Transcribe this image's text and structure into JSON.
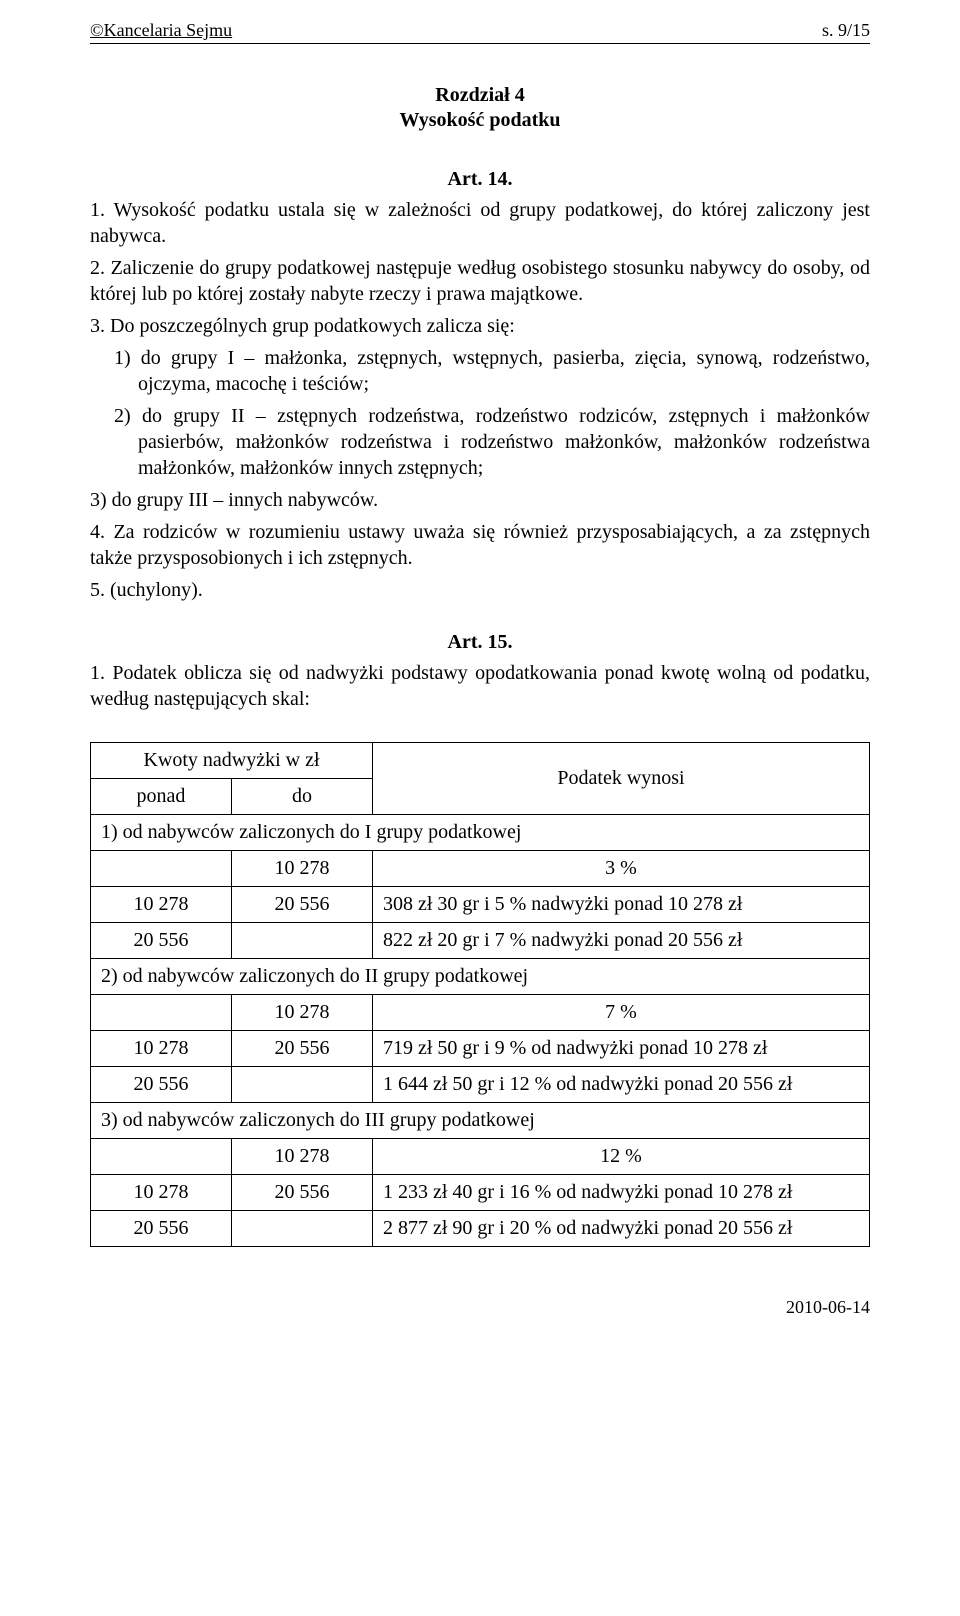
{
  "header": {
    "left": "©Kancelaria Sejmu",
    "right": "s. 9/15"
  },
  "chapter": {
    "title": "Rozdział 4",
    "subtitle": "Wysokość podatku"
  },
  "article14": {
    "heading": "Art. 14.",
    "p1": "1. Wysokość podatku ustala się w zależności od grupy podatkowej, do której zaliczony jest nabywca.",
    "p2": "2. Zaliczenie do grupy podatkowej następuje według osobistego stosunku nabywcy do osoby, od której lub po której zostały nabyte rzeczy i prawa majątkowe.",
    "p3_intro": "3. Do poszczególnych grup podatkowych zalicza się:",
    "p3_1": "1) do grupy I – małżonka, zstępnych, wstępnych, pasierba, zięcia, synową, rodzeństwo, ojczyma, macochę i teściów;",
    "p3_2": "2) do grupy II – zstępnych rodzeństwa, rodzeństwo rodziców, zstępnych i małżonków pasierbów, małżonków rodzeństwa i rodzeństwo małżonków, małżonków rodzeństwa małżonków, małżonków innych zstępnych;",
    "p3_3": "3) do grupy III – innych nabywców.",
    "p4": "4. Za rodziców w rozumieniu ustawy uważa się również przysposabiających, a za zstępnych także przysposobionych i ich zstępnych.",
    "p5": "5. (uchylony)."
  },
  "article15": {
    "heading": "Art. 15.",
    "p1": "1. Podatek oblicza się od nadwyżki podstawy opodatkowania ponad kwotę wolną od podatku, według następujących skal:"
  },
  "table": {
    "hdr_kwoty": "Kwoty nadwyżki w zł",
    "hdr_podatek": "Podatek wynosi",
    "hdr_ponad": "ponad",
    "hdr_do": "do",
    "group1_label": "1) od nabywców zaliczonych do I grupy podatkowej",
    "group2_label": "2) od nabywców zaliczonych do II grupy podatkowej",
    "group3_label": "3) od nabywców zaliczonych do III grupy podatkowej",
    "g1": {
      "r1": {
        "ponad": "",
        "do": "10 278",
        "tax": "3 %"
      },
      "r2": {
        "ponad": "10 278",
        "do": "20 556",
        "tax": "308 zł 30 gr i 5 % nadwyżki ponad 10 278 zł"
      },
      "r3": {
        "ponad": "20 556",
        "do": "",
        "tax": "822 zł 20 gr i 7 % nadwyżki ponad 20 556 zł"
      }
    },
    "g2": {
      "r1": {
        "ponad": "",
        "do": "10 278",
        "tax": "7 %"
      },
      "r2": {
        "ponad": "10 278",
        "do": "20 556",
        "tax": "719 zł 50 gr i 9 % od nadwyżki ponad 10 278 zł"
      },
      "r3": {
        "ponad": "20 556",
        "do": "",
        "tax": "1 644 zł 50 gr i 12 % od nadwyżki ponad 20 556 zł"
      }
    },
    "g3": {
      "r1": {
        "ponad": "",
        "do": "10 278",
        "tax": "12 %"
      },
      "r2": {
        "ponad": "10 278",
        "do": "20 556",
        "tax": "1 233 zł 40 gr i 16 % od nadwyżki ponad 10 278 zł"
      },
      "r3": {
        "ponad": "20 556",
        "do": "",
        "tax": "2 877 zł 90 gr i 20 % od nadwyżki ponad 20 556 zł"
      }
    }
  },
  "footer": {
    "date": "2010-06-14"
  }
}
